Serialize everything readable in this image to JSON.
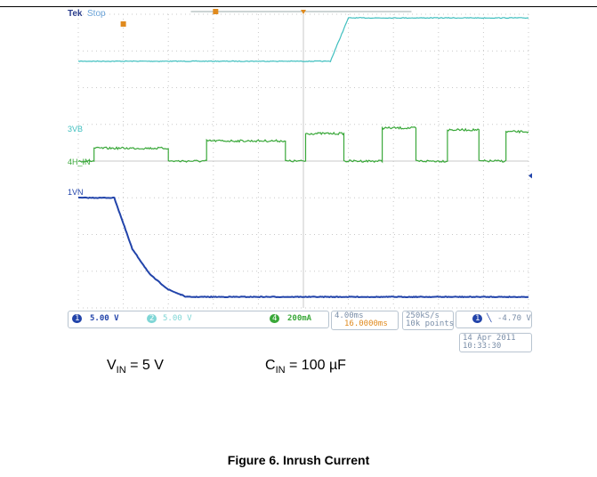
{
  "brand": "Tek",
  "acq_status": "Stop",
  "channel_markers": {
    "ch3": "3",
    "ch4": "4",
    "ch1": "1",
    "ch3_suffix": "VB",
    "ch4_suffix": "H_IN",
    "ch1_suffix": "VN"
  },
  "status_bar": {
    "ch1_badge": "1",
    "ch1_scale": "5.00 V",
    "ch2_badge": "2",
    "ch2_scale": "5.00 V",
    "ch4_badge": "4",
    "ch4_scale": "200mA",
    "timebase": "4.00ms",
    "trigger_pos": "16.0000ms",
    "sample_rate": "250kS/s",
    "record_length": "10k points",
    "trig_badge": "1",
    "trig_level": "-4.70 V",
    "date": "14 Apr 2011",
    "time": "10:33:30"
  },
  "colors": {
    "ch3": "#3fbfbf",
    "ch4": "#3aa83a",
    "ch1": "#2244aa",
    "trigger": "#e08a1e",
    "grid": "#c8c8c8"
  },
  "caption": {
    "vin_label": "V",
    "vin_sub": "IN",
    "vin_value": " = 5 V",
    "cin_label": "C",
    "cin_sub": "IN",
    "cin_value": " = 100 µF",
    "figure_title": "Figure 6. Inrush Current"
  },
  "chart_data": {
    "type": "line",
    "x_divisions": 10,
    "y_divisions": 8,
    "series": [
      {
        "channel": "ch3",
        "x": [
          0,
          5.6,
          6.0,
          10
        ],
        "y": [
          6.72,
          6.72,
          7.9,
          7.9
        ]
      },
      {
        "channel": "ch4",
        "x": [
          0,
          0.35,
          0.35,
          2.0,
          2.0,
          2.85,
          2.85,
          4.6,
          4.6,
          5.05,
          5.05,
          5.9,
          5.9,
          6.75,
          6.75,
          7.5,
          7.5,
          8.2,
          8.2,
          8.9,
          8.9,
          9.5,
          9.5,
          10
        ],
        "y": [
          4.0,
          4.0,
          4.35,
          4.35,
          4.0,
          4.0,
          4.55,
          4.55,
          4.0,
          4.0,
          4.75,
          4.75,
          4.0,
          4.0,
          4.9,
          4.9,
          4.0,
          4.0,
          4.85,
          4.85,
          4.0,
          4.0,
          4.8,
          4.8
        ]
      },
      {
        "channel": "ch1",
        "x": [
          0,
          0.8,
          1.2,
          1.6,
          2.0,
          2.4,
          10
        ],
        "y": [
          3.0,
          3.0,
          1.6,
          0.9,
          0.5,
          0.3,
          0.3
        ]
      }
    ]
  }
}
